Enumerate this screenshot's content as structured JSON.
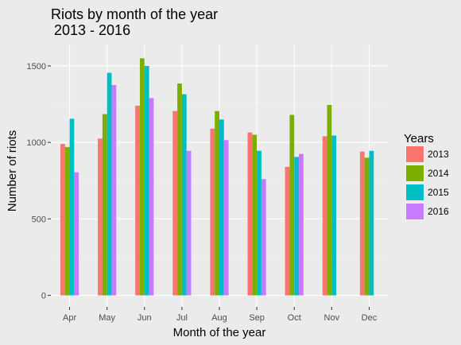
{
  "chart_data": {
    "type": "bar",
    "title": "Riots by month of the year",
    "subtitle": "2013 - 2016",
    "xlabel": "Month of the year",
    "ylabel": "Number of riots",
    "ylim": [
      -75,
      1640
    ],
    "yticks": [
      0,
      500,
      1000,
      1500
    ],
    "categories": [
      "Apr",
      "May",
      "Jun",
      "Jul",
      "Aug",
      "Sep",
      "Oct",
      "Nov",
      "Dec"
    ],
    "legend": {
      "title": "Years",
      "position": "right"
    },
    "grid": true,
    "series": [
      {
        "name": "2013",
        "color": "#F8766D",
        "values": [
          990,
          1025,
          1240,
          1205,
          1090,
          1065,
          840,
          1040,
          940
        ]
      },
      {
        "name": "2014",
        "color": "#7CAE00",
        "values": [
          970,
          1185,
          1550,
          1385,
          1205,
          1050,
          1180,
          1245,
          900
        ]
      },
      {
        "name": "2015",
        "color": "#00BFC4",
        "values": [
          1155,
          1455,
          1500,
          1315,
          1150,
          945,
          905,
          1045,
          945
        ]
      },
      {
        "name": "2016",
        "color": "#C77CFF",
        "values": [
          805,
          1375,
          1290,
          945,
          1015,
          760,
          925,
          null,
          null
        ]
      }
    ]
  }
}
